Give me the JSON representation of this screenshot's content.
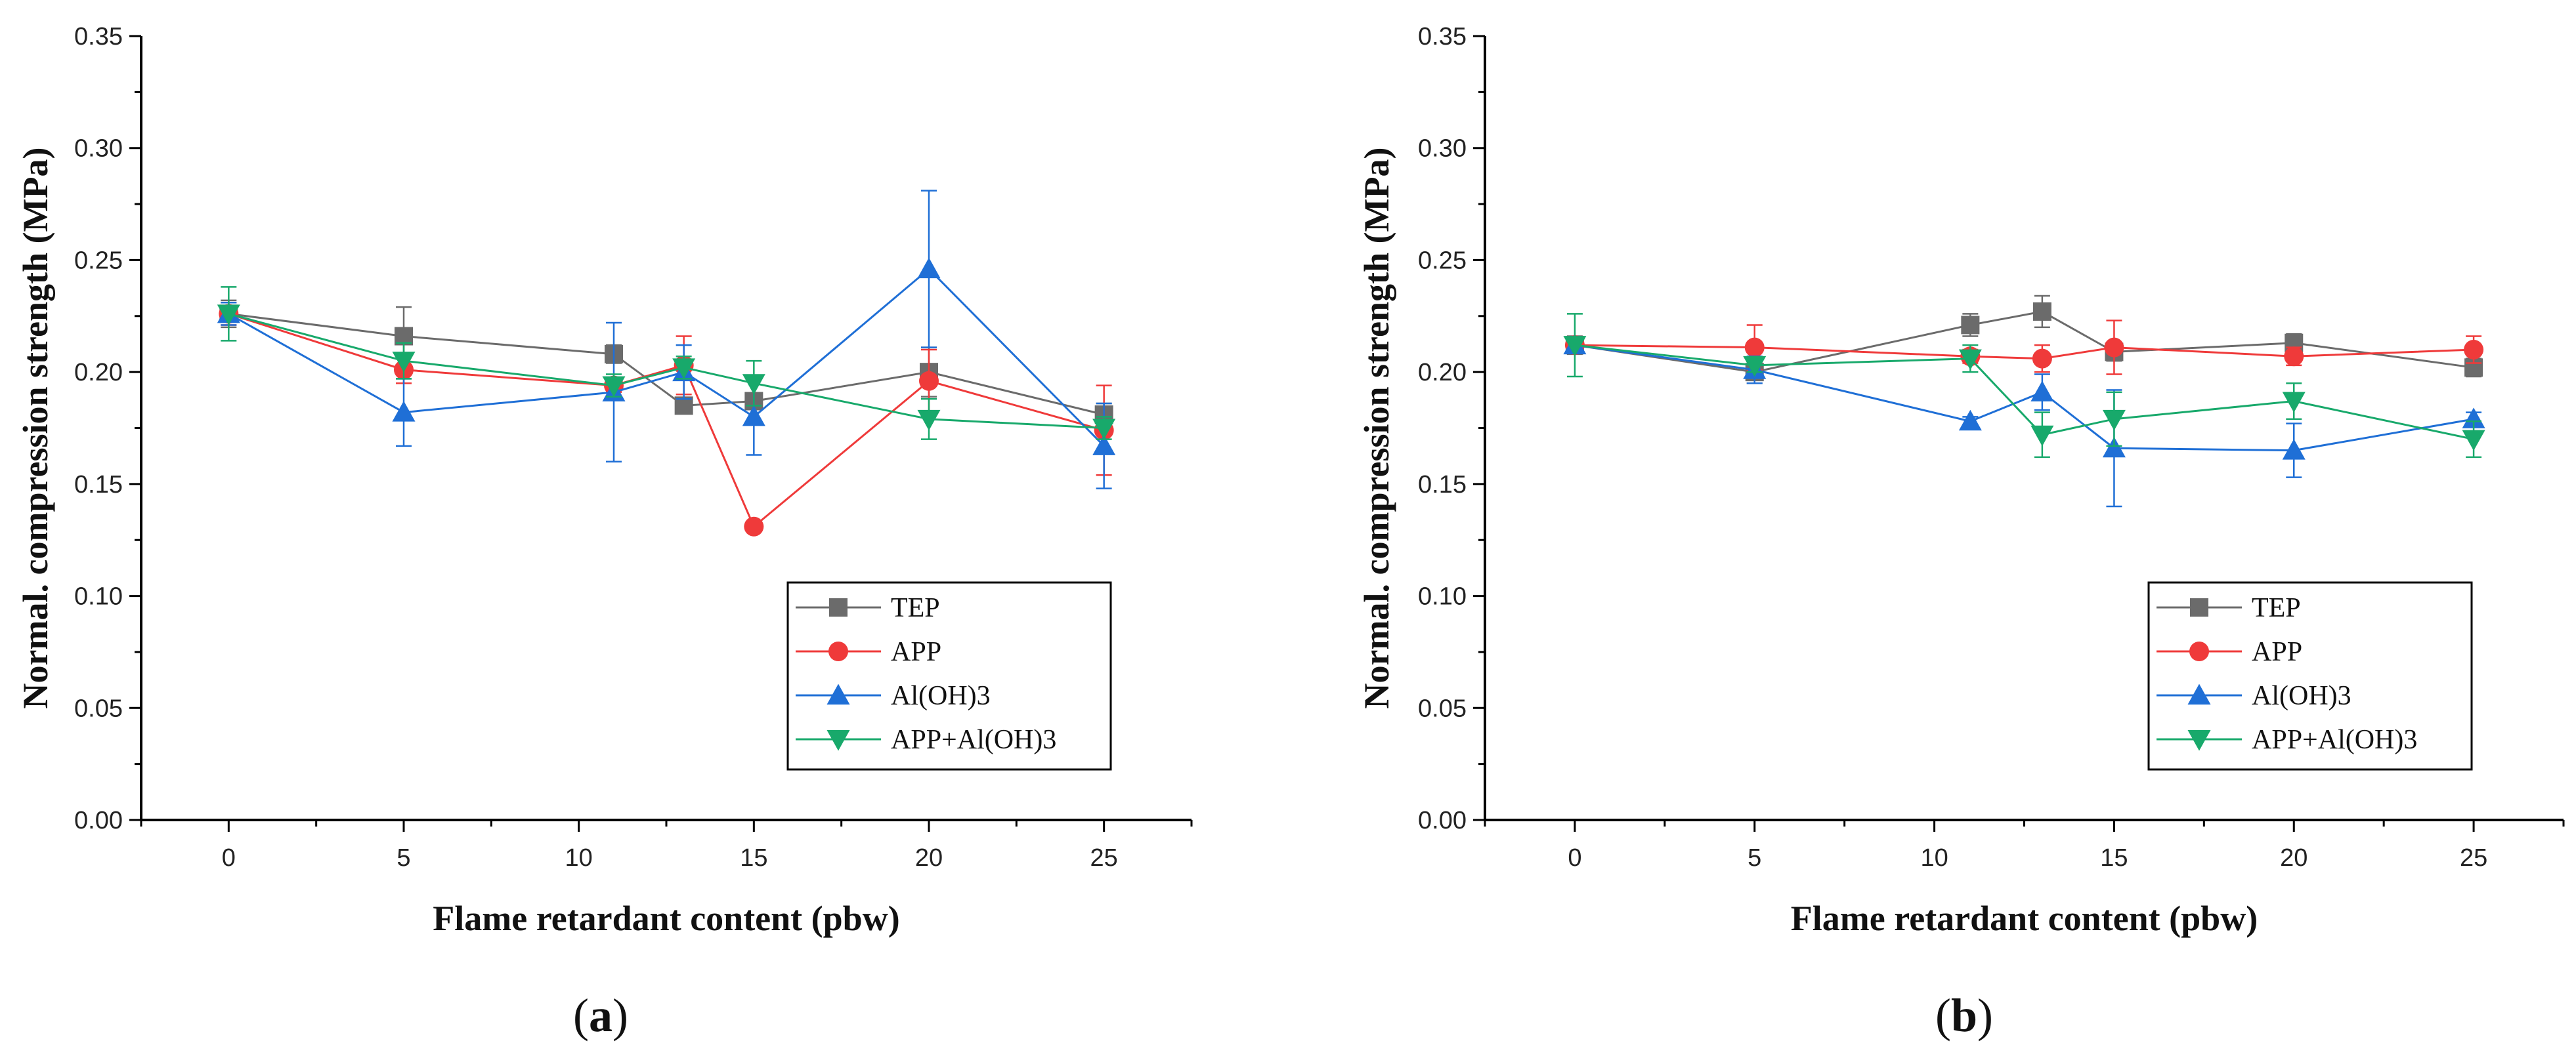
{
  "figure": {
    "panels": [
      {
        "label_open": "(",
        "label_letter": "a",
        "label_close": ")"
      },
      {
        "label_open": "(",
        "label_letter": "b",
        "label_close": ")"
      }
    ]
  },
  "chart_data": [
    {
      "type": "line",
      "panel": "a",
      "xlabel": "Flame retardant content (pbw)",
      "ylabel": "Normal. compression strength (MPa)",
      "xlim": [
        -2.5,
        27.5
      ],
      "ylim": [
        0,
        0.35
      ],
      "xticks": [
        0,
        5,
        10,
        15,
        20,
        25
      ],
      "xtick_labels": [
        "0",
        "5",
        "10",
        "15",
        "20",
        "25"
      ],
      "yticks": [
        0,
        0.05,
        0.1,
        0.15,
        0.2,
        0.25,
        0.3,
        0.35
      ],
      "ytick_labels": [
        "0.00",
        "0.05",
        "0.10",
        "0.15",
        "0.20",
        "0.25",
        "0.30",
        "0.35"
      ],
      "legend_position": "lower-right",
      "series": [
        {
          "name": "TEP",
          "color": "#6b6b6b",
          "marker": "square",
          "x": [
            0,
            5,
            11,
            13,
            15,
            20,
            25
          ],
          "y": [
            0.226,
            0.216,
            0.208,
            0.185,
            0.187,
            0.2,
            0.181
          ],
          "err": [
            0.006,
            0.013,
            0.004,
            0.003,
            0.003,
            0.011,
            0.005
          ]
        },
        {
          "name": "APP",
          "color": "#ef3a3a",
          "marker": "circle",
          "x": [
            0,
            5,
            11,
            13,
            15,
            20,
            25
          ],
          "y": [
            0.226,
            0.201,
            0.194,
            0.203,
            0.131,
            0.196,
            0.174
          ],
          "err": [
            0.005,
            0.006,
            0.003,
            0.013,
            0.0,
            0.014,
            0.02
          ]
        },
        {
          "name": "Al(OH)3",
          "color": "#1f6fd6",
          "marker": "triangle-up",
          "x": [
            0,
            5,
            11,
            13,
            15,
            20,
            25
          ],
          "y": [
            0.226,
            0.182,
            0.191,
            0.2,
            0.18,
            0.246,
            0.167
          ],
          "err": [
            0.005,
            0.015,
            0.031,
            0.012,
            0.017,
            0.035,
            0.019
          ]
        },
        {
          "name": "APP+Al(OH)3",
          "color": "#18a96b",
          "marker": "triangle-down",
          "x": [
            0,
            5,
            11,
            13,
            15,
            20,
            25
          ],
          "y": [
            0.226,
            0.205,
            0.194,
            0.202,
            0.195,
            0.179,
            0.175
          ],
          "err": [
            0.012,
            0.008,
            0.005,
            0.005,
            0.01,
            0.009,
            0.005
          ]
        }
      ]
    },
    {
      "type": "line",
      "panel": "b",
      "xlabel": "Flame retardant content (pbw)",
      "ylabel": "Normal. compression strength (MPa)",
      "xlim": [
        -2.5,
        27.5
      ],
      "ylim": [
        0,
        0.35
      ],
      "xticks": [
        0,
        5,
        10,
        15,
        20,
        25
      ],
      "xtick_labels": [
        "0",
        "5",
        "10",
        "15",
        "20",
        "25"
      ],
      "yticks": [
        0,
        0.05,
        0.1,
        0.15,
        0.2,
        0.25,
        0.3,
        0.35
      ],
      "ytick_labels": [
        "0.00",
        "0.05",
        "0.10",
        "0.15",
        "0.20",
        "0.25",
        "0.30",
        "0.35"
      ],
      "legend_position": "lower-right",
      "series": [
        {
          "name": "TEP",
          "color": "#6b6b6b",
          "marker": "square",
          "x": [
            0,
            5,
            11,
            13,
            15,
            20,
            25
          ],
          "y": [
            0.212,
            0.2,
            0.221,
            0.227,
            0.209,
            0.213,
            0.202
          ],
          "err": [
            0.004,
            0.005,
            0.005,
            0.007,
            0.004,
            0.004,
            0.004
          ]
        },
        {
          "name": "APP",
          "color": "#ef3a3a",
          "marker": "circle",
          "x": [
            0,
            5,
            11,
            13,
            15,
            20,
            25
          ],
          "y": [
            0.212,
            0.211,
            0.207,
            0.206,
            0.211,
            0.207,
            0.21
          ],
          "err": [
            0.003,
            0.01,
            0.003,
            0.006,
            0.012,
            0.004,
            0.006
          ]
        },
        {
          "name": "Al(OH)3",
          "color": "#1f6fd6",
          "marker": "triangle-up",
          "x": [
            0,
            5,
            11,
            13,
            15,
            20,
            25
          ],
          "y": [
            0.212,
            0.201,
            0.178,
            0.191,
            0.166,
            0.165,
            0.179
          ],
          "err": [
            0.003,
            0.006,
            0.002,
            0.008,
            0.026,
            0.012,
            0.003
          ]
        },
        {
          "name": "APP+Al(OH)3",
          "color": "#18a96b",
          "marker": "triangle-down",
          "x": [
            0,
            5,
            11,
            13,
            15,
            20,
            25
          ],
          "y": [
            0.212,
            0.203,
            0.206,
            0.172,
            0.179,
            0.187,
            0.17
          ],
          "err": [
            0.014,
            0.003,
            0.006,
            0.01,
            0.012,
            0.008,
            0.008
          ]
        }
      ]
    }
  ]
}
